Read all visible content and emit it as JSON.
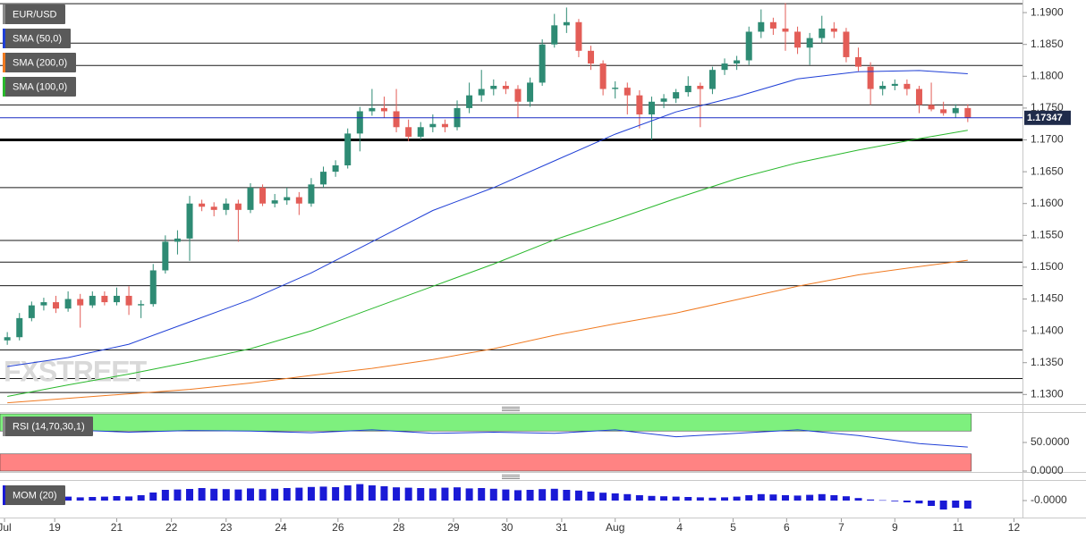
{
  "chart_data": [
    {
      "type": "candlestick",
      "title": "EUR/USD",
      "watermark": "FXSTREET",
      "up_color": "#2e8b74",
      "down_color": "#e35d57",
      "candles": [
        [
          1.1385,
          1.1398,
          1.1378,
          1.139
        ],
        [
          1.139,
          1.1428,
          1.1385,
          1.142
        ],
        [
          1.142,
          1.1446,
          1.1415,
          1.144
        ],
        [
          1.144,
          1.1452,
          1.1432,
          1.1445
        ],
        [
          1.1445,
          1.1455,
          1.1428,
          1.1435
        ],
        [
          1.1435,
          1.1462,
          1.143,
          1.145
        ],
        [
          1.145,
          1.1458,
          1.1405,
          1.144
        ],
        [
          1.144,
          1.1462,
          1.1436,
          1.1455
        ],
        [
          1.1455,
          1.1462,
          1.144,
          1.1445
        ],
        [
          1.1445,
          1.1468,
          1.144,
          1.1455
        ],
        [
          1.1455,
          1.147,
          1.1425,
          1.144
        ],
        [
          1.144,
          1.1448,
          1.142,
          1.1442
        ],
        [
          1.1442,
          1.1505,
          1.1438,
          1.1495
        ],
        [
          1.1495,
          1.155,
          1.149,
          1.154
        ],
        [
          1.154,
          1.1558,
          1.152,
          1.1545
        ],
        [
          1.1545,
          1.1612,
          1.151,
          1.16
        ],
        [
          1.16,
          1.1606,
          1.1588,
          1.1595
        ],
        [
          1.1595,
          1.1602,
          1.158,
          1.159
        ],
        [
          1.159,
          1.1608,
          1.1582,
          1.16
        ],
        [
          1.16,
          1.1606,
          1.154,
          1.159
        ],
        [
          1.159,
          1.1632,
          1.1585,
          1.1625
        ],
        [
          1.1625,
          1.163,
          1.1596,
          1.16
        ],
        [
          1.16,
          1.1615,
          1.1594,
          1.1605
        ],
        [
          1.1605,
          1.1625,
          1.1598,
          1.161
        ],
        [
          1.161,
          1.1618,
          1.1582,
          1.16
        ],
        [
          1.16,
          1.164,
          1.1595,
          1.163
        ],
        [
          1.163,
          1.1658,
          1.1625,
          1.165
        ],
        [
          1.165,
          1.1668,
          1.1642,
          1.166
        ],
        [
          1.166,
          1.1718,
          1.1655,
          1.171
        ],
        [
          1.171,
          1.1752,
          1.1682,
          1.1745
        ],
        [
          1.1745,
          1.178,
          1.1738,
          1.175
        ],
        [
          1.175,
          1.1768,
          1.1735,
          1.1745
        ],
        [
          1.1745,
          1.178,
          1.1712,
          1.172
        ],
        [
          1.172,
          1.1732,
          1.1698,
          1.1705
        ],
        [
          1.1705,
          1.1728,
          1.17,
          1.172
        ],
        [
          1.172,
          1.174,
          1.1712,
          1.1725
        ],
        [
          1.1725,
          1.1732,
          1.1712,
          1.172
        ],
        [
          1.172,
          1.1762,
          1.1715,
          1.175
        ],
        [
          1.175,
          1.179,
          1.1742,
          1.177
        ],
        [
          1.177,
          1.181,
          1.176,
          1.178
        ],
        [
          1.178,
          1.1795,
          1.177,
          1.1785
        ],
        [
          1.1785,
          1.1792,
          1.1772,
          1.178
        ],
        [
          1.178,
          1.1786,
          1.1735,
          1.176
        ],
        [
          1.176,
          1.1798,
          1.1752,
          1.179
        ],
        [
          1.179,
          1.1858,
          1.1785,
          1.185
        ],
        [
          1.185,
          1.1898,
          1.1845,
          1.188
        ],
        [
          1.188,
          1.1908,
          1.1868,
          1.1885
        ],
        [
          1.1885,
          1.189,
          1.183,
          1.184
        ],
        [
          1.184,
          1.1848,
          1.181,
          1.182
        ],
        [
          1.182,
          1.1825,
          1.177,
          1.178
        ],
        [
          1.178,
          1.1792,
          1.1765,
          1.1782
        ],
        [
          1.1782,
          1.179,
          1.174,
          1.177
        ],
        [
          1.177,
          1.1778,
          1.1718,
          1.174
        ],
        [
          1.174,
          1.1768,
          1.17,
          1.176
        ],
        [
          1.176,
          1.1772,
          1.175,
          1.1765
        ],
        [
          1.1765,
          1.178,
          1.1758,
          1.1775
        ],
        [
          1.1775,
          1.18,
          1.1768,
          1.1785
        ],
        [
          1.1785,
          1.179,
          1.172,
          1.178
        ],
        [
          1.178,
          1.1815,
          1.1772,
          1.181
        ],
        [
          1.181,
          1.1828,
          1.1802,
          1.182
        ],
        [
          1.182,
          1.1832,
          1.181,
          1.1825
        ],
        [
          1.1825,
          1.1878,
          1.1818,
          1.187
        ],
        [
          1.187,
          1.1905,
          1.186,
          1.1885
        ],
        [
          1.1885,
          1.1892,
          1.1865,
          1.1875
        ],
        [
          1.1875,
          1.1915,
          1.184,
          1.187
        ],
        [
          1.187,
          1.1878,
          1.1835,
          1.1845
        ],
        [
          1.1845,
          1.1868,
          1.1818,
          1.186
        ],
        [
          1.186,
          1.1895,
          1.1852,
          1.1875
        ],
        [
          1.1875,
          1.1885,
          1.186,
          1.187
        ],
        [
          1.187,
          1.1876,
          1.1822,
          1.183
        ],
        [
          1.183,
          1.1845,
          1.1808,
          1.1815
        ],
        [
          1.1815,
          1.1822,
          1.1755,
          1.178
        ],
        [
          1.178,
          1.1792,
          1.177,
          1.1785
        ],
        [
          1.1785,
          1.1795,
          1.1778,
          1.1788
        ],
        [
          1.1788,
          1.1795,
          1.177,
          1.178
        ],
        [
          1.178,
          1.1785,
          1.1742,
          1.1755
        ],
        [
          1.1755,
          1.179,
          1.1745,
          1.1748
        ],
        [
          1.1748,
          1.176,
          1.1738,
          1.1742
        ],
        [
          1.1742,
          1.1756,
          1.1735,
          1.175
        ],
        [
          1.175,
          1.1756,
          1.1728,
          1.1735
        ]
      ],
      "xlim": [
        -0.6,
        83.5
      ],
      "xticks": [
        {
          "value": -0.23,
          "label": "Jul"
        },
        {
          "value": 3.9,
          "label": "19"
        },
        {
          "value": 9.0,
          "label": "21"
        },
        {
          "value": 13.5,
          "label": "22"
        },
        {
          "value": 18.0,
          "label": "23"
        },
        {
          "value": 22.5,
          "label": "24"
        },
        {
          "value": 27.2,
          "label": "26"
        },
        {
          "value": 32.2,
          "label": "28"
        },
        {
          "value": 36.7,
          "label": "29"
        },
        {
          "value": 41.1,
          "label": "30"
        },
        {
          "value": 45.6,
          "label": "31"
        },
        {
          "value": 50.0,
          "label": "Aug"
        },
        {
          "value": 55.3,
          "label": "4"
        },
        {
          "value": 59.7,
          "label": "5"
        },
        {
          "value": 64.1,
          "label": "6"
        },
        {
          "value": 68.6,
          "label": "7"
        },
        {
          "value": 73.0,
          "label": "9"
        },
        {
          "value": 78.2,
          "label": "11"
        },
        {
          "value": 82.8,
          "label": "12"
        }
      ],
      "ylim": [
        1.1285,
        1.1917
      ],
      "yticks": [
        {
          "value": 1.13,
          "label": "1.1300"
        },
        {
          "value": 1.135,
          "label": "1.1350"
        },
        {
          "value": 1.14,
          "label": "1.1400"
        },
        {
          "value": 1.145,
          "label": "1.1450"
        },
        {
          "value": 1.15,
          "label": "1.1500"
        },
        {
          "value": 1.155,
          "label": "1.1550"
        },
        {
          "value": 1.16,
          "label": "1.1600"
        },
        {
          "value": 1.165,
          "label": "1.1650"
        },
        {
          "value": 1.17,
          "label": "1.1700"
        },
        {
          "value": 1.175,
          "label": "1.1750"
        },
        {
          "value": 1.18,
          "label": "1.1800"
        },
        {
          "value": 1.185,
          "label": "1.1850"
        },
        {
          "value": 1.19,
          "label": "1.1900"
        }
      ],
      "series": [
        {
          "name": "SMA (50,0)",
          "color": "#1f3fd6",
          "x": [
            0,
            5,
            10,
            15,
            20,
            25,
            30,
            35,
            40,
            45,
            50,
            55,
            60,
            65,
            70,
            75,
            79
          ],
          "values": [
            1.1344,
            1.1358,
            1.1379,
            1.1414,
            1.1449,
            1.1491,
            1.154,
            1.1589,
            1.1625,
            1.1667,
            1.1709,
            1.1744,
            1.1768,
            1.1796,
            1.1807,
            1.1809,
            1.1804
          ]
        },
        {
          "name": "SMA (200,0)",
          "color": "#f07a21",
          "x": [
            0,
            5,
            10,
            15,
            20,
            25,
            30,
            35,
            40,
            45,
            50,
            55,
            60,
            65,
            70,
            75,
            79
          ],
          "values": [
            1.1287,
            1.1294,
            1.1301,
            1.1308,
            1.1318,
            1.133,
            1.1341,
            1.1355,
            1.1372,
            1.1393,
            1.1411,
            1.1428,
            1.1449,
            1.147,
            1.1488,
            1.1501,
            1.1511
          ]
        },
        {
          "name": "SMA (100,0)",
          "color": "#29b82c",
          "x": [
            0,
            5,
            10,
            15,
            20,
            25,
            30,
            35,
            40,
            45,
            50,
            55,
            60,
            65,
            70,
            75,
            79
          ],
          "values": [
            1.1297,
            1.1315,
            1.1332,
            1.1351,
            1.1372,
            1.14,
            1.1435,
            1.147,
            1.1505,
            1.1543,
            1.1575,
            1.1608,
            1.1639,
            1.1664,
            1.1684,
            1.1702,
            1.1715
          ]
        }
      ],
      "levels": [
        1.1914,
        1.1852,
        1.1817,
        1.1755,
        1.1625,
        1.1542,
        1.1508,
        1.1471,
        1.137,
        1.1325,
        1.1303
      ],
      "key_level": 1.17,
      "last_price": {
        "value": 1.17347,
        "label": "1.17347"
      },
      "last_price_color": "#1a2bc4"
    },
    {
      "type": "line",
      "title": "RSI (14,70,30,1)",
      "color": "#1f3fd6",
      "overbought": 70,
      "oversold": 30,
      "overbought_color": "#7ef07e",
      "oversold_color": "#ff8383",
      "x": [
        0,
        5,
        10,
        15,
        20,
        25,
        30,
        35,
        40,
        45,
        50,
        55,
        60,
        65,
        70,
        75,
        79
      ],
      "values": [
        70,
        72,
        68,
        71,
        70,
        67,
        72,
        66,
        68,
        66,
        72,
        60,
        66,
        72,
        62,
        48,
        42
      ],
      "ylim": [
        0,
        100
      ],
      "yticks": [
        {
          "value": 50,
          "label": "50.0000"
        },
        {
          "value": 0,
          "label": "0.0000"
        }
      ]
    },
    {
      "type": "bar",
      "title": "MOM (20)",
      "color": "#1a1ad6",
      "values": [
        0.0005,
        0.0012,
        0.0015,
        0.0018,
        0.002,
        0.0022,
        0.0018,
        0.002,
        0.0022,
        0.0025,
        0.0023,
        0.003,
        0.0045,
        0.006,
        0.0062,
        0.0065,
        0.007,
        0.0066,
        0.0064,
        0.0062,
        0.0068,
        0.0064,
        0.0066,
        0.007,
        0.0072,
        0.0076,
        0.0078,
        0.0075,
        0.0085,
        0.0092,
        0.0085,
        0.008,
        0.0074,
        0.0072,
        0.007,
        0.0068,
        0.0072,
        0.0074,
        0.0068,
        0.007,
        0.0066,
        0.0062,
        0.0058,
        0.006,
        0.0064,
        0.0066,
        0.006,
        0.0056,
        0.005,
        0.0044,
        0.004,
        0.0036,
        0.003,
        0.0026,
        0.0024,
        0.0022,
        0.002,
        0.0018,
        0.0016,
        0.0018,
        0.0022,
        0.003,
        0.0036,
        0.0034,
        0.003,
        0.0028,
        0.0032,
        0.0036,
        0.003,
        0.0024,
        0.0014,
        0.0006,
        0.0002,
        -0.0004,
        -0.001,
        -0.0016,
        -0.003,
        -0.005,
        -0.004,
        -0.0045
      ],
      "ylim": [
        -0.009,
        0.01
      ],
      "yticks": [
        {
          "value": 0,
          "label": "-0.0000"
        }
      ]
    }
  ]
}
